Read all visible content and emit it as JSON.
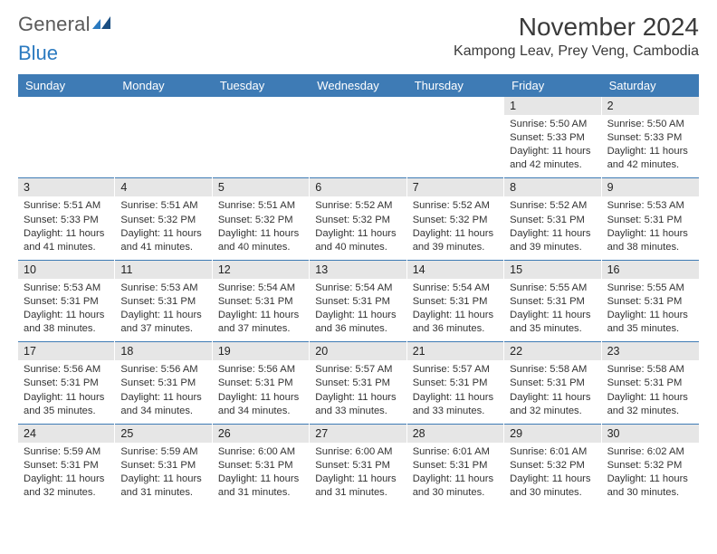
{
  "logo": {
    "text_gray": "General",
    "text_blue": "Blue"
  },
  "header": {
    "month_title": "November 2024",
    "location": "Kampong Leav, Prey Veng, Cambodia"
  },
  "colors": {
    "header_bar": "#3e7bb5",
    "daynum_bg": "#e6e6e6",
    "logo_blue": "#2b7ac0",
    "text": "#333333"
  },
  "days_of_week": [
    "Sunday",
    "Monday",
    "Tuesday",
    "Wednesday",
    "Thursday",
    "Friday",
    "Saturday"
  ],
  "weeks": [
    [
      {
        "n": "",
        "sunrise": "",
        "sunset": "",
        "daylight": ""
      },
      {
        "n": "",
        "sunrise": "",
        "sunset": "",
        "daylight": ""
      },
      {
        "n": "",
        "sunrise": "",
        "sunset": "",
        "daylight": ""
      },
      {
        "n": "",
        "sunrise": "",
        "sunset": "",
        "daylight": ""
      },
      {
        "n": "",
        "sunrise": "",
        "sunset": "",
        "daylight": ""
      },
      {
        "n": "1",
        "sunrise": "Sunrise: 5:50 AM",
        "sunset": "Sunset: 5:33 PM",
        "daylight": "Daylight: 11 hours and 42 minutes."
      },
      {
        "n": "2",
        "sunrise": "Sunrise: 5:50 AM",
        "sunset": "Sunset: 5:33 PM",
        "daylight": "Daylight: 11 hours and 42 minutes."
      }
    ],
    [
      {
        "n": "3",
        "sunrise": "Sunrise: 5:51 AM",
        "sunset": "Sunset: 5:33 PM",
        "daylight": "Daylight: 11 hours and 41 minutes."
      },
      {
        "n": "4",
        "sunrise": "Sunrise: 5:51 AM",
        "sunset": "Sunset: 5:32 PM",
        "daylight": "Daylight: 11 hours and 41 minutes."
      },
      {
        "n": "5",
        "sunrise": "Sunrise: 5:51 AM",
        "sunset": "Sunset: 5:32 PM",
        "daylight": "Daylight: 11 hours and 40 minutes."
      },
      {
        "n": "6",
        "sunrise": "Sunrise: 5:52 AM",
        "sunset": "Sunset: 5:32 PM",
        "daylight": "Daylight: 11 hours and 40 minutes."
      },
      {
        "n": "7",
        "sunrise": "Sunrise: 5:52 AM",
        "sunset": "Sunset: 5:32 PM",
        "daylight": "Daylight: 11 hours and 39 minutes."
      },
      {
        "n": "8",
        "sunrise": "Sunrise: 5:52 AM",
        "sunset": "Sunset: 5:31 PM",
        "daylight": "Daylight: 11 hours and 39 minutes."
      },
      {
        "n": "9",
        "sunrise": "Sunrise: 5:53 AM",
        "sunset": "Sunset: 5:31 PM",
        "daylight": "Daylight: 11 hours and 38 minutes."
      }
    ],
    [
      {
        "n": "10",
        "sunrise": "Sunrise: 5:53 AM",
        "sunset": "Sunset: 5:31 PM",
        "daylight": "Daylight: 11 hours and 38 minutes."
      },
      {
        "n": "11",
        "sunrise": "Sunrise: 5:53 AM",
        "sunset": "Sunset: 5:31 PM",
        "daylight": "Daylight: 11 hours and 37 minutes."
      },
      {
        "n": "12",
        "sunrise": "Sunrise: 5:54 AM",
        "sunset": "Sunset: 5:31 PM",
        "daylight": "Daylight: 11 hours and 37 minutes."
      },
      {
        "n": "13",
        "sunrise": "Sunrise: 5:54 AM",
        "sunset": "Sunset: 5:31 PM",
        "daylight": "Daylight: 11 hours and 36 minutes."
      },
      {
        "n": "14",
        "sunrise": "Sunrise: 5:54 AM",
        "sunset": "Sunset: 5:31 PM",
        "daylight": "Daylight: 11 hours and 36 minutes."
      },
      {
        "n": "15",
        "sunrise": "Sunrise: 5:55 AM",
        "sunset": "Sunset: 5:31 PM",
        "daylight": "Daylight: 11 hours and 35 minutes."
      },
      {
        "n": "16",
        "sunrise": "Sunrise: 5:55 AM",
        "sunset": "Sunset: 5:31 PM",
        "daylight": "Daylight: 11 hours and 35 minutes."
      }
    ],
    [
      {
        "n": "17",
        "sunrise": "Sunrise: 5:56 AM",
        "sunset": "Sunset: 5:31 PM",
        "daylight": "Daylight: 11 hours and 35 minutes."
      },
      {
        "n": "18",
        "sunrise": "Sunrise: 5:56 AM",
        "sunset": "Sunset: 5:31 PM",
        "daylight": "Daylight: 11 hours and 34 minutes."
      },
      {
        "n": "19",
        "sunrise": "Sunrise: 5:56 AM",
        "sunset": "Sunset: 5:31 PM",
        "daylight": "Daylight: 11 hours and 34 minutes."
      },
      {
        "n": "20",
        "sunrise": "Sunrise: 5:57 AM",
        "sunset": "Sunset: 5:31 PM",
        "daylight": "Daylight: 11 hours and 33 minutes."
      },
      {
        "n": "21",
        "sunrise": "Sunrise: 5:57 AM",
        "sunset": "Sunset: 5:31 PM",
        "daylight": "Daylight: 11 hours and 33 minutes."
      },
      {
        "n": "22",
        "sunrise": "Sunrise: 5:58 AM",
        "sunset": "Sunset: 5:31 PM",
        "daylight": "Daylight: 11 hours and 32 minutes."
      },
      {
        "n": "23",
        "sunrise": "Sunrise: 5:58 AM",
        "sunset": "Sunset: 5:31 PM",
        "daylight": "Daylight: 11 hours and 32 minutes."
      }
    ],
    [
      {
        "n": "24",
        "sunrise": "Sunrise: 5:59 AM",
        "sunset": "Sunset: 5:31 PM",
        "daylight": "Daylight: 11 hours and 32 minutes."
      },
      {
        "n": "25",
        "sunrise": "Sunrise: 5:59 AM",
        "sunset": "Sunset: 5:31 PM",
        "daylight": "Daylight: 11 hours and 31 minutes."
      },
      {
        "n": "26",
        "sunrise": "Sunrise: 6:00 AM",
        "sunset": "Sunset: 5:31 PM",
        "daylight": "Daylight: 11 hours and 31 minutes."
      },
      {
        "n": "27",
        "sunrise": "Sunrise: 6:00 AM",
        "sunset": "Sunset: 5:31 PM",
        "daylight": "Daylight: 11 hours and 31 minutes."
      },
      {
        "n": "28",
        "sunrise": "Sunrise: 6:01 AM",
        "sunset": "Sunset: 5:31 PM",
        "daylight": "Daylight: 11 hours and 30 minutes."
      },
      {
        "n": "29",
        "sunrise": "Sunrise: 6:01 AM",
        "sunset": "Sunset: 5:32 PM",
        "daylight": "Daylight: 11 hours and 30 minutes."
      },
      {
        "n": "30",
        "sunrise": "Sunrise: 6:02 AM",
        "sunset": "Sunset: 5:32 PM",
        "daylight": "Daylight: 11 hours and 30 minutes."
      }
    ]
  ]
}
